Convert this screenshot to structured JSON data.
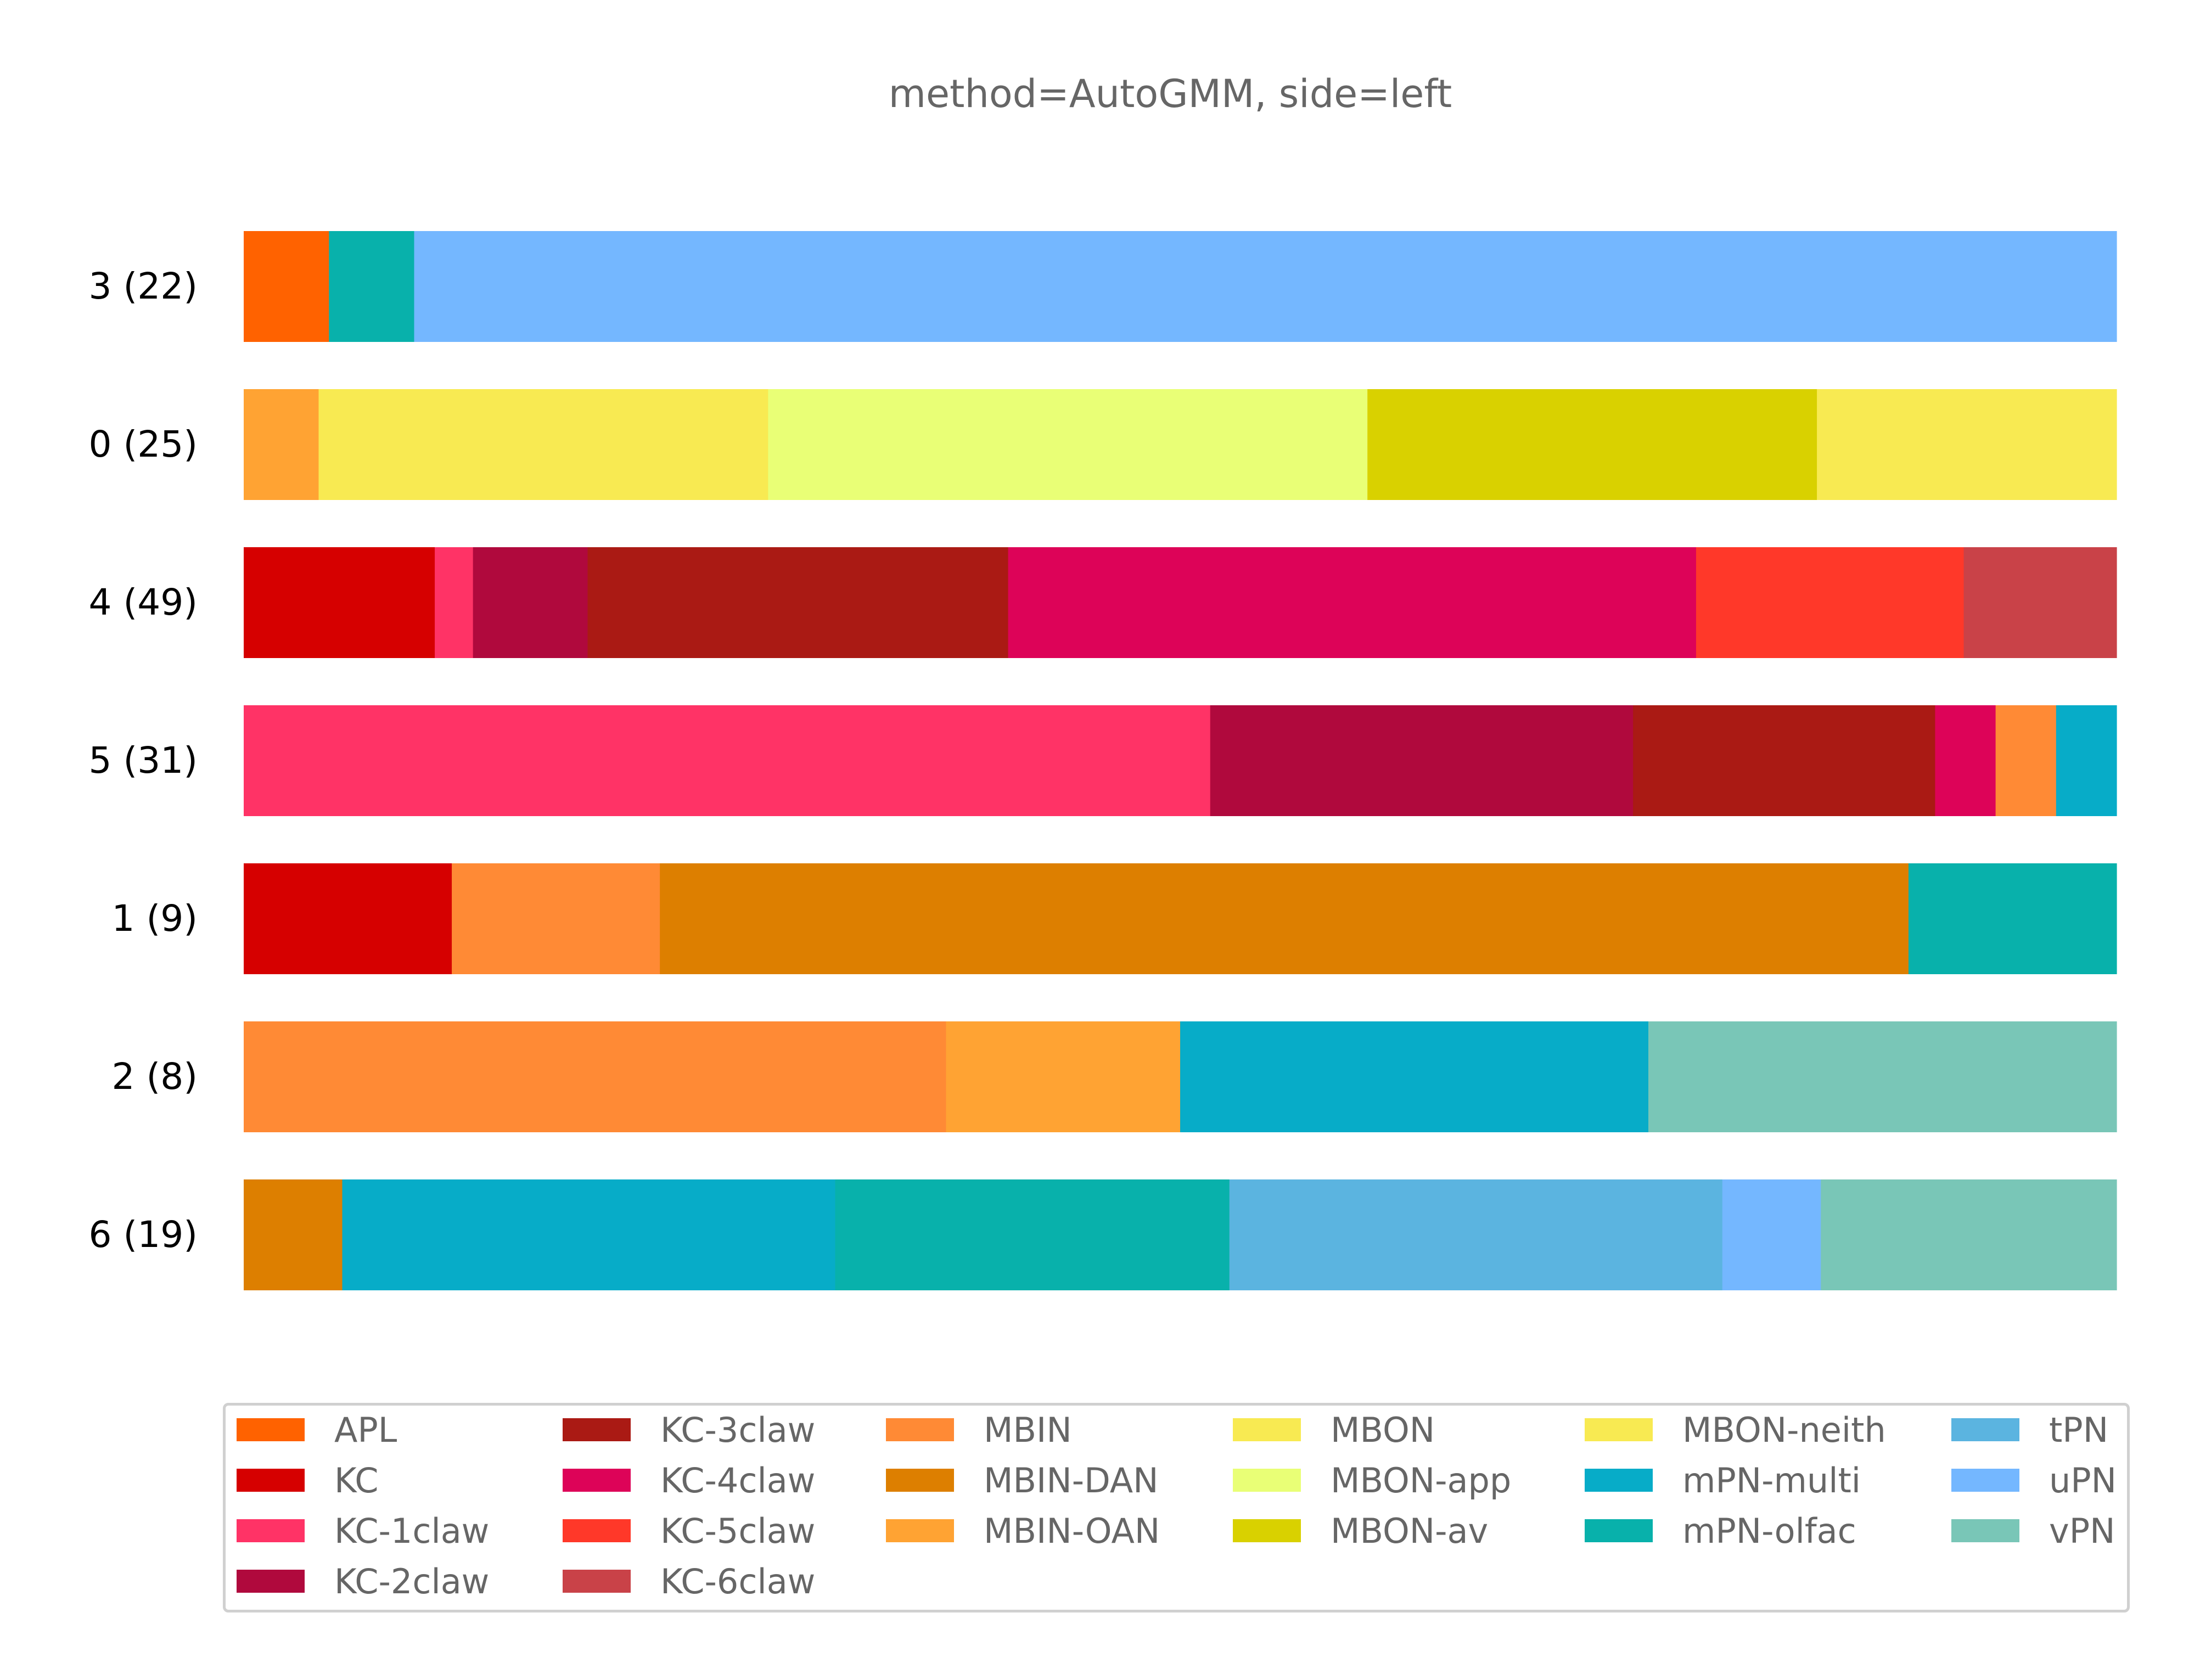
{
  "chart_data": {
    "type": "bar",
    "orientation": "horizontal",
    "stacked": true,
    "normalized": true,
    "title": "method=AutoGMM, side=left",
    "xlabel": "",
    "ylabel": "",
    "xlim": [
      0,
      1
    ],
    "grid": false,
    "legend_position": "bottom",
    "categories": [
      "3 (22)",
      "0 (25)",
      "4 (49)",
      "5 (31)",
      "1 (9)",
      "2 (8)",
      "6 (19)"
    ],
    "bars": [
      {
        "label": "3 (22)",
        "segments": [
          {
            "class": "APL",
            "value": 0.0455
          },
          {
            "class": "mPN-olfac",
            "value": 0.0455
          },
          {
            "class": "uPN",
            "value": 0.909
          }
        ]
      },
      {
        "label": "0 (25)",
        "segments": [
          {
            "class": "MBIN-OAN",
            "value": 0.04
          },
          {
            "class": "MBON",
            "value": 0.24
          },
          {
            "class": "MBON-app",
            "value": 0.32
          },
          {
            "class": "MBON-av",
            "value": 0.24
          },
          {
            "class": "MBON-neith",
            "value": 0.16
          }
        ]
      },
      {
        "label": "4 (49)",
        "segments": [
          {
            "class": "KC",
            "value": 0.102
          },
          {
            "class": "KC-1claw",
            "value": 0.0204
          },
          {
            "class": "KC-2claw",
            "value": 0.0612
          },
          {
            "class": "KC-3claw",
            "value": 0.2245
          },
          {
            "class": "KC-4claw",
            "value": 0.3673
          },
          {
            "class": "KC-5claw",
            "value": 0.1429
          },
          {
            "class": "KC-6claw",
            "value": 0.0816
          }
        ]
      },
      {
        "label": "5 (31)",
        "segments": [
          {
            "class": "KC-1claw",
            "value": 0.5161
          },
          {
            "class": "KC-2claw",
            "value": 0.2258
          },
          {
            "class": "KC-3claw",
            "value": 0.1613
          },
          {
            "class": "KC-4claw",
            "value": 0.0323
          },
          {
            "class": "MBIN",
            "value": 0.0323
          },
          {
            "class": "mPN-multi",
            "value": 0.0323
          }
        ]
      },
      {
        "label": "1 (9)",
        "segments": [
          {
            "class": "KC",
            "value": 0.1111
          },
          {
            "class": "MBIN",
            "value": 0.1111
          },
          {
            "class": "MBIN-DAN",
            "value": 0.6667
          },
          {
            "class": "mPN-olfac",
            "value": 0.1111
          }
        ]
      },
      {
        "label": "2 (8)",
        "segments": [
          {
            "class": "MBIN",
            "value": 0.375
          },
          {
            "class": "MBIN-OAN",
            "value": 0.125
          },
          {
            "class": "mPN-multi",
            "value": 0.25
          },
          {
            "class": "vPN",
            "value": 0.25
          }
        ]
      },
      {
        "label": "6 (19)",
        "segments": [
          {
            "class": "MBIN-DAN",
            "value": 0.0526
          },
          {
            "class": "mPN-multi",
            "value": 0.2632
          },
          {
            "class": "mPN-olfac",
            "value": 0.2105
          },
          {
            "class": "tPN",
            "value": 0.2632
          },
          {
            "class": "uPN",
            "value": 0.0526
          },
          {
            "class": "vPN",
            "value": 0.1579
          }
        ]
      }
    ],
    "legend": [
      {
        "label": "APL",
        "color": "#ff6200"
      },
      {
        "label": "KC",
        "color": "#d60000"
      },
      {
        "label": "KC-1claw",
        "color": "#ff3366"
      },
      {
        "label": "KC-2claw",
        "color": "#b0093d"
      },
      {
        "label": "KC-3claw",
        "color": "#aa1a14"
      },
      {
        "label": "KC-4claw",
        "color": "#dd0358"
      },
      {
        "label": "KC-5claw",
        "color": "#ff3829"
      },
      {
        "label": "KC-6claw",
        "color": "#c94248"
      },
      {
        "label": "MBIN",
        "color": "#ff8a35"
      },
      {
        "label": "MBIN-DAN",
        "color": "#dd7f00"
      },
      {
        "label": "MBIN-OAN",
        "color": "#ffa333"
      },
      {
        "label": "MBON",
        "color": "#f8ea52"
      },
      {
        "label": "MBON-app",
        "color": "#e9ff76"
      },
      {
        "label": "MBON-av",
        "color": "#d9d100"
      },
      {
        "label": "MBON-neith",
        "color": "#f8ea52"
      },
      {
        "label": "mPN-multi",
        "color": "#07acc8"
      },
      {
        "label": "mPN-olfac",
        "color": "#08b1ab"
      },
      {
        "label": "tPN",
        "color": "#5bb4e0"
      },
      {
        "label": "uPN",
        "color": "#74b7ff"
      },
      {
        "label": "vPN",
        "color": "#79c6b7"
      }
    ]
  }
}
